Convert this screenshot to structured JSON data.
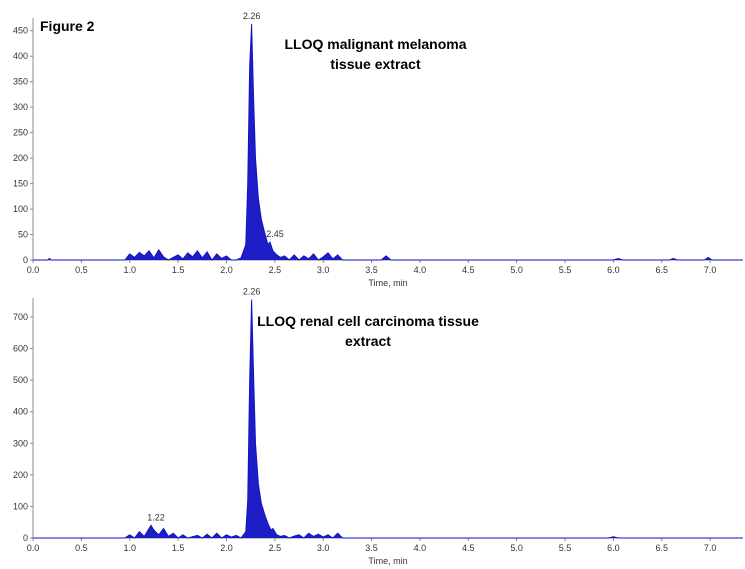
{
  "figure_label": "Figure 2",
  "chart_data": [
    {
      "type": "area",
      "title": "LLOQ malignant melanoma tissue extract",
      "xlabel": "Time, min",
      "x": [
        0,
        0.15,
        0.17,
        0.19,
        0.95,
        1.0,
        1.05,
        1.1,
        1.15,
        1.2,
        1.25,
        1.3,
        1.35,
        1.4,
        1.5,
        1.55,
        1.6,
        1.65,
        1.7,
        1.75,
        1.8,
        1.85,
        1.9,
        1.95,
        2.0,
        2.05,
        2.1,
        2.15,
        2.2,
        2.22,
        2.24,
        2.26,
        2.28,
        2.3,
        2.33,
        2.36,
        2.4,
        2.43,
        2.45,
        2.48,
        2.52,
        2.56,
        2.6,
        2.65,
        2.7,
        2.75,
        2.8,
        2.85,
        2.9,
        2.95,
        3.0,
        3.05,
        3.1,
        3.15,
        3.2,
        3.25,
        3.6,
        3.65,
        3.7,
        6.0,
        6.05,
        6.1,
        6.58,
        6.62,
        6.66,
        6.94,
        6.98,
        7.02,
        7.34
      ],
      "series": [
        {
          "color": "#1212c4",
          "values": [
            0,
            0,
            3,
            0,
            0,
            12,
            5,
            15,
            8,
            18,
            4,
            20,
            6,
            0,
            10,
            2,
            14,
            6,
            18,
            4,
            16,
            0,
            12,
            3,
            8,
            0,
            0,
            4,
            30,
            150,
            380,
            463,
            320,
            200,
            120,
            80,
            50,
            30,
            35,
            18,
            10,
            5,
            8,
            0,
            10,
            0,
            8,
            2,
            12,
            0,
            6,
            14,
            2,
            10,
            0,
            0,
            0,
            8,
            0,
            0,
            3,
            0,
            0,
            3,
            0,
            0,
            5,
            0,
            0
          ]
        }
      ],
      "annotations": [
        {
          "label": "2.26",
          "x": 2.26,
          "y": 463
        },
        {
          "label": "2.45",
          "x": 2.45,
          "y": 35
        }
      ],
      "xlim": [
        0,
        7.34
      ],
      "ylim": [
        0,
        475
      ],
      "xticks": [
        {
          "value": 0,
          "label": "0.0"
        },
        0.5,
        {
          "value": 1,
          "label": "1.0"
        },
        1.5,
        {
          "value": 2,
          "label": "2.0"
        },
        2.5,
        {
          "value": 3,
          "label": "3.0"
        },
        3.5,
        {
          "value": 4,
          "label": "4.0"
        },
        4.5,
        {
          "value": 5,
          "label": "5.0"
        },
        5.5,
        {
          "value": 6,
          "label": "6.0"
        },
        6.5,
        {
          "value": 7,
          "label": "7.0"
        }
      ],
      "yticks": [
        0,
        50,
        100,
        150,
        200,
        250,
        300,
        350,
        400,
        450
      ]
    },
    {
      "type": "area",
      "title": "LLOQ renal cell carcinoma tissue extract",
      "xlabel": "Time, min",
      "x": [
        0,
        0.95,
        1.0,
        1.05,
        1.1,
        1.15,
        1.2,
        1.22,
        1.25,
        1.3,
        1.35,
        1.4,
        1.45,
        1.5,
        1.55,
        1.6,
        1.7,
        1.75,
        1.8,
        1.85,
        1.9,
        1.95,
        2.0,
        2.05,
        2.1,
        2.15,
        2.2,
        2.22,
        2.24,
        2.26,
        2.28,
        2.3,
        2.33,
        2.36,
        2.4,
        2.43,
        2.46,
        2.48,
        2.52,
        2.56,
        2.6,
        2.65,
        2.7,
        2.75,
        2.8,
        2.85,
        2.9,
        2.95,
        3.0,
        3.05,
        3.1,
        3.15,
        3.2,
        3.25,
        3.3,
        5.95,
        6.0,
        6.05,
        7.34
      ],
      "series": [
        {
          "color": "#1212c4",
          "values": [
            0,
            0,
            10,
            0,
            20,
            5,
            30,
            40,
            25,
            10,
            30,
            5,
            15,
            0,
            10,
            0,
            8,
            0,
            12,
            0,
            15,
            0,
            10,
            3,
            8,
            0,
            20,
            120,
            500,
            755,
            520,
            300,
            170,
            110,
            70,
            45,
            25,
            30,
            10,
            5,
            8,
            0,
            6,
            10,
            0,
            15,
            5,
            12,
            3,
            10,
            0,
            15,
            0,
            0,
            0,
            0,
            4,
            0,
            0
          ]
        }
      ],
      "annotations": [
        {
          "label": "2.26",
          "x": 2.26,
          "y": 755
        },
        {
          "label": "1.22",
          "x": 1.22,
          "y": 40
        }
      ],
      "xlim": [
        0,
        7.34
      ],
      "ylim": [
        0,
        760
      ],
      "xticks": [
        {
          "value": 0,
          "label": "0.0"
        },
        0.5,
        {
          "value": 1,
          "label": "1.0"
        },
        1.5,
        {
          "value": 2,
          "label": "2.0"
        },
        2.5,
        {
          "value": 3,
          "label": "3.0"
        },
        3.5,
        {
          "value": 4,
          "label": "4.0"
        },
        4.5,
        {
          "value": 5,
          "label": "5.0"
        },
        5.5,
        {
          "value": 6,
          "label": "6.0"
        },
        6.5,
        {
          "value": 7,
          "label": "7.0"
        }
      ],
      "yticks": [
        0,
        100,
        200,
        300,
        400,
        500,
        600,
        700
      ]
    }
  ]
}
